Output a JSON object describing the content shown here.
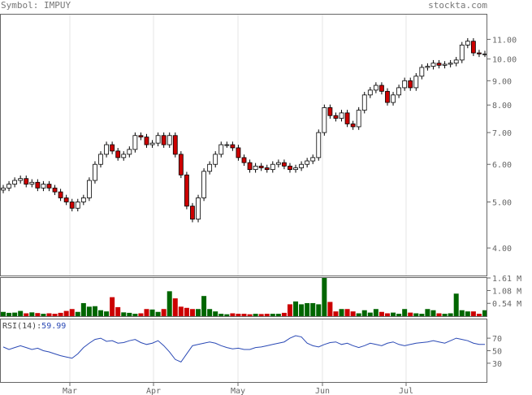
{
  "header": {
    "symbol_text": "Symbol: IMPUY",
    "site": "stockta.com"
  },
  "rsi": {
    "label": "RSI(14):",
    "value": "59.99"
  },
  "chart_data": {
    "type": "candlestick",
    "price_axis": {
      "scale": "log",
      "ticks": [
        "11.00",
        "10.00",
        "9.00",
        "8.00",
        "7.00",
        "6.00",
        "5.00",
        "4.00"
      ],
      "range": [
        3.5,
        12.4
      ]
    },
    "volume_axis": {
      "ticks": [
        "1.61 M",
        "1.08 M",
        "0.54 M"
      ],
      "max": 1.61
    },
    "rsi_axis": {
      "ticks": [
        "70",
        "50",
        "30"
      ],
      "range": [
        0,
        100
      ]
    },
    "x_labels": [
      "Mar",
      "Apr",
      "May",
      "Jun",
      "Jul"
    ],
    "colors": {
      "up": "#ffffff",
      "down": "#cc0000",
      "vol_up": "#006600",
      "vol_down": "#cc0000",
      "rsi": "#2a49b5",
      "grid": "#e6e6e6"
    }
  }
}
